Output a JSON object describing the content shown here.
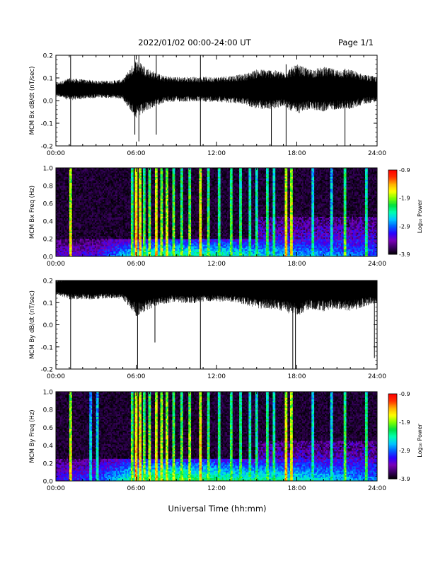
{
  "header": {
    "title": "2022/01/02  00:00-24:00 UT",
    "page": "Page 1/1"
  },
  "footer": {
    "xlabel": "Universal Time (hh:mm)"
  },
  "colorbar": {
    "label": "Log₁₀ Power",
    "ticks": [
      "-0.9",
      "-1.9",
      "-2.9",
      "-3.9"
    ],
    "range": [
      -3.9,
      -0.9
    ],
    "colormap": [
      "#000000",
      "#3a0062",
      "#7a00b8",
      "#2a00ff",
      "#0060ff",
      "#00c8ff",
      "#00ffb0",
      "#00e040",
      "#7fff00",
      "#ffff00",
      "#ffb000",
      "#ff3000",
      "#ff0000"
    ]
  },
  "chart_data": [
    {
      "type": "line",
      "id": "bx-dbdt",
      "ylabel": "MCM Bx dB/dt (nT/sec)",
      "xlim": [
        0,
        24
      ],
      "ylim": [
        -0.2,
        0.2
      ],
      "yticks": [
        "0.2",
        "0.1",
        "0.0",
        "-0.1",
        "-0.2"
      ],
      "xticks": [
        "00:00",
        "06:00",
        "12:00",
        "18:00",
        "24:00"
      ],
      "baseline": 0.05,
      "color": "#000000",
      "activity_envelope": {
        "hours": [
          0,
          1,
          2,
          3,
          4,
          5,
          6,
          7,
          8,
          9,
          10,
          11,
          12,
          13,
          14,
          15,
          16,
          17,
          18,
          19,
          20,
          21,
          22,
          23,
          24
        ],
        "amplitude": [
          0.025,
          0.045,
          0.04,
          0.035,
          0.035,
          0.04,
          0.12,
          0.08,
          0.055,
          0.05,
          0.05,
          0.05,
          0.05,
          0.055,
          0.06,
          0.08,
          0.08,
          0.07,
          0.1,
          0.08,
          0.09,
          0.08,
          0.08,
          0.06,
          0.05
        ]
      },
      "spikes": [
        [
          1.1,
          -0.2,
          0.2
        ],
        [
          5.9,
          -0.15,
          0.2
        ],
        [
          6.2,
          -0.18,
          0.2
        ],
        [
          7.5,
          -0.15,
          0.2
        ],
        [
          10.8,
          -0.2,
          0.2
        ],
        [
          16.1,
          -0.2,
          0.12
        ],
        [
          17.2,
          -0.2,
          0.16
        ],
        [
          21.6,
          -0.2,
          0.14
        ]
      ]
    },
    {
      "type": "heatmap",
      "id": "bx-spectrogram",
      "ylabel": "MCM Bx Freq (Hz)",
      "xlim": [
        0,
        24
      ],
      "ylim": [
        0,
        1.0
      ],
      "yticks": [
        "1.0",
        "0.8",
        "0.6",
        "0.4",
        "0.2",
        "0.0"
      ],
      "xticks": [
        "00:00",
        "06:00",
        "12:00",
        "18:00",
        "24:00"
      ],
      "value_units": "Log₁₀ Power",
      "background_level": -3.9,
      "broadband_stripes": [
        [
          1.1,
          -1.6
        ],
        [
          5.7,
          -2.0
        ],
        [
          6.0,
          -1.4
        ],
        [
          6.3,
          -1.5
        ],
        [
          6.6,
          -2.0
        ],
        [
          7.0,
          -1.9
        ],
        [
          7.5,
          -1.5
        ],
        [
          7.9,
          -1.8
        ],
        [
          8.3,
          -1.7
        ],
        [
          8.8,
          -1.9
        ],
        [
          9.4,
          -2.0
        ],
        [
          10.0,
          -1.9
        ],
        [
          10.8,
          -1.5
        ],
        [
          11.4,
          -2.0
        ],
        [
          12.2,
          -2.1
        ],
        [
          13.1,
          -2.0
        ],
        [
          13.8,
          -2.1
        ],
        [
          14.5,
          -2.2
        ],
        [
          15.0,
          -2.2
        ],
        [
          15.8,
          -2.1
        ],
        [
          16.3,
          -2.2
        ],
        [
          17.2,
          -1.5
        ],
        [
          17.6,
          -1.6
        ],
        [
          19.2,
          -2.3
        ],
        [
          20.6,
          -2.4
        ],
        [
          21.6,
          -2.0
        ],
        [
          23.2,
          -2.2
        ]
      ],
      "low_freq_band": {
        "freq_max": 0.2,
        "hours": [
          0,
          3,
          6,
          9,
          12,
          15,
          18,
          21,
          24
        ],
        "level": [
          -3.3,
          -3.2,
          -2.4,
          -2.2,
          -2.3,
          -2.5,
          -2.6,
          -2.8,
          -3.0
        ]
      }
    },
    {
      "type": "line",
      "id": "by-dbdt",
      "ylabel": "MCM By dB/dt (nT/sec)",
      "xlim": [
        0,
        24
      ],
      "ylim": [
        -0.2,
        0.2
      ],
      "yticks": [
        "0.2",
        "0.1",
        "0.0",
        "-0.1",
        "-0.2"
      ],
      "xticks": [
        "00:00",
        "06:00",
        "12:00",
        "18:00",
        "24:00"
      ],
      "baseline": 0.17,
      "color": "#000000",
      "activity_envelope": {
        "hours": [
          0,
          1,
          2,
          3,
          4,
          5,
          6,
          7,
          8,
          9,
          10,
          11,
          12,
          13,
          14,
          15,
          16,
          17,
          18,
          19,
          20,
          21,
          22,
          23,
          24
        ],
        "amplitude": [
          0.03,
          0.05,
          0.05,
          0.05,
          0.045,
          0.05,
          0.12,
          0.09,
          0.07,
          0.06,
          0.07,
          0.06,
          0.06,
          0.06,
          0.07,
          0.09,
          0.09,
          0.1,
          0.12,
          0.09,
          0.1,
          0.09,
          0.1,
          0.08,
          0.07
        ]
      },
      "spikes": [
        [
          1.1,
          -0.2,
          0.2
        ],
        [
          6.1,
          -0.2,
          0.2
        ],
        [
          7.4,
          -0.08,
          0.2
        ],
        [
          10.8,
          -0.2,
          0.2
        ],
        [
          17.7,
          -0.2,
          0.2
        ],
        [
          17.9,
          -0.2,
          0.2
        ],
        [
          23.8,
          -0.15,
          0.2
        ]
      ]
    },
    {
      "type": "heatmap",
      "id": "by-spectrogram",
      "ylabel": "MCM By Freq (Hz)",
      "xlim": [
        0,
        24
      ],
      "ylim": [
        0,
        1.0
      ],
      "yticks": [
        "1.0",
        "0.8",
        "0.6",
        "0.4",
        "0.2",
        "0.0"
      ],
      "xticks": [
        "00:00",
        "06:00",
        "12:00",
        "18:00",
        "24:00"
      ],
      "value_units": "Log₁₀ Power",
      "background_level": -3.9,
      "broadband_stripes": [
        [
          1.1,
          -1.6
        ],
        [
          2.6,
          -2.5
        ],
        [
          3.1,
          -2.4
        ],
        [
          5.7,
          -1.9
        ],
        [
          6.0,
          -1.4
        ],
        [
          6.3,
          -1.5
        ],
        [
          6.6,
          -1.9
        ],
        [
          7.0,
          -1.8
        ],
        [
          7.5,
          -1.5
        ],
        [
          7.9,
          -1.7
        ],
        [
          8.3,
          -1.7
        ],
        [
          8.8,
          -1.9
        ],
        [
          9.4,
          -1.9
        ],
        [
          10.0,
          -1.8
        ],
        [
          10.8,
          -1.5
        ],
        [
          11.4,
          -2.0
        ],
        [
          12.2,
          -2.1
        ],
        [
          13.1,
          -2.0
        ],
        [
          13.8,
          -2.1
        ],
        [
          14.5,
          -2.2
        ],
        [
          15.0,
          -2.2
        ],
        [
          15.8,
          -2.1
        ],
        [
          16.3,
          -2.2
        ],
        [
          17.2,
          -1.5
        ],
        [
          17.6,
          -1.6
        ],
        [
          19.2,
          -2.3
        ],
        [
          20.6,
          -2.3
        ],
        [
          21.6,
          -2.0
        ],
        [
          23.2,
          -2.1
        ]
      ],
      "low_freq_band": {
        "freq_max": 0.25,
        "hours": [
          0,
          3,
          6,
          9,
          12,
          15,
          18,
          21,
          24
        ],
        "level": [
          -3.2,
          -3.0,
          -2.2,
          -2.0,
          -2.2,
          -2.3,
          -2.4,
          -2.6,
          -2.8
        ]
      }
    }
  ]
}
